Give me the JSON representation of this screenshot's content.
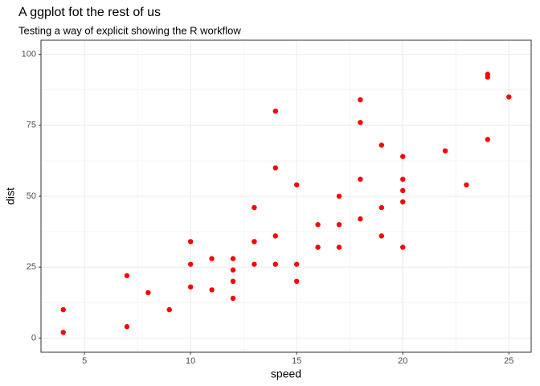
{
  "chart_data": {
    "type": "scatter",
    "title": "A ggplot fot the rest of us",
    "subtitle": "Testing a way of explicit showing the R workflow",
    "x_label": "speed",
    "y_label": "dist",
    "color": "#ff0000",
    "x": [
      4,
      4,
      7,
      7,
      8,
      9,
      10,
      10,
      10,
      11,
      11,
      12,
      12,
      12,
      12,
      13,
      13,
      13,
      13,
      14,
      14,
      14,
      14,
      15,
      15,
      15,
      16,
      16,
      17,
      17,
      17,
      18,
      18,
      18,
      18,
      19,
      19,
      19,
      20,
      20,
      20,
      20,
      20,
      22,
      23,
      24,
      24,
      24,
      25
    ],
    "y": [
      2,
      10,
      4,
      22,
      16,
      10,
      18,
      26,
      34,
      17,
      28,
      14,
      20,
      24,
      28,
      26,
      34,
      34,
      46,
      26,
      36,
      60,
      80,
      20,
      26,
      54,
      32,
      40,
      32,
      40,
      50,
      42,
      56,
      76,
      84,
      36,
      46,
      68,
      32,
      48,
      52,
      56,
      64,
      66,
      54,
      70,
      92,
      93,
      85
    ],
    "xlim": [
      2.95,
      26.05
    ],
    "ylim": [
      -5,
      105
    ],
    "xticks": [
      5,
      10,
      15,
      20,
      25
    ],
    "yticks": [
      0,
      25,
      50,
      75,
      100
    ],
    "x_minor_ticks": [
      7.5,
      12.5,
      17.5,
      22.5
    ],
    "y_minor_ticks": [
      12.5,
      37.5,
      62.5,
      87.5
    ],
    "grid": true
  }
}
